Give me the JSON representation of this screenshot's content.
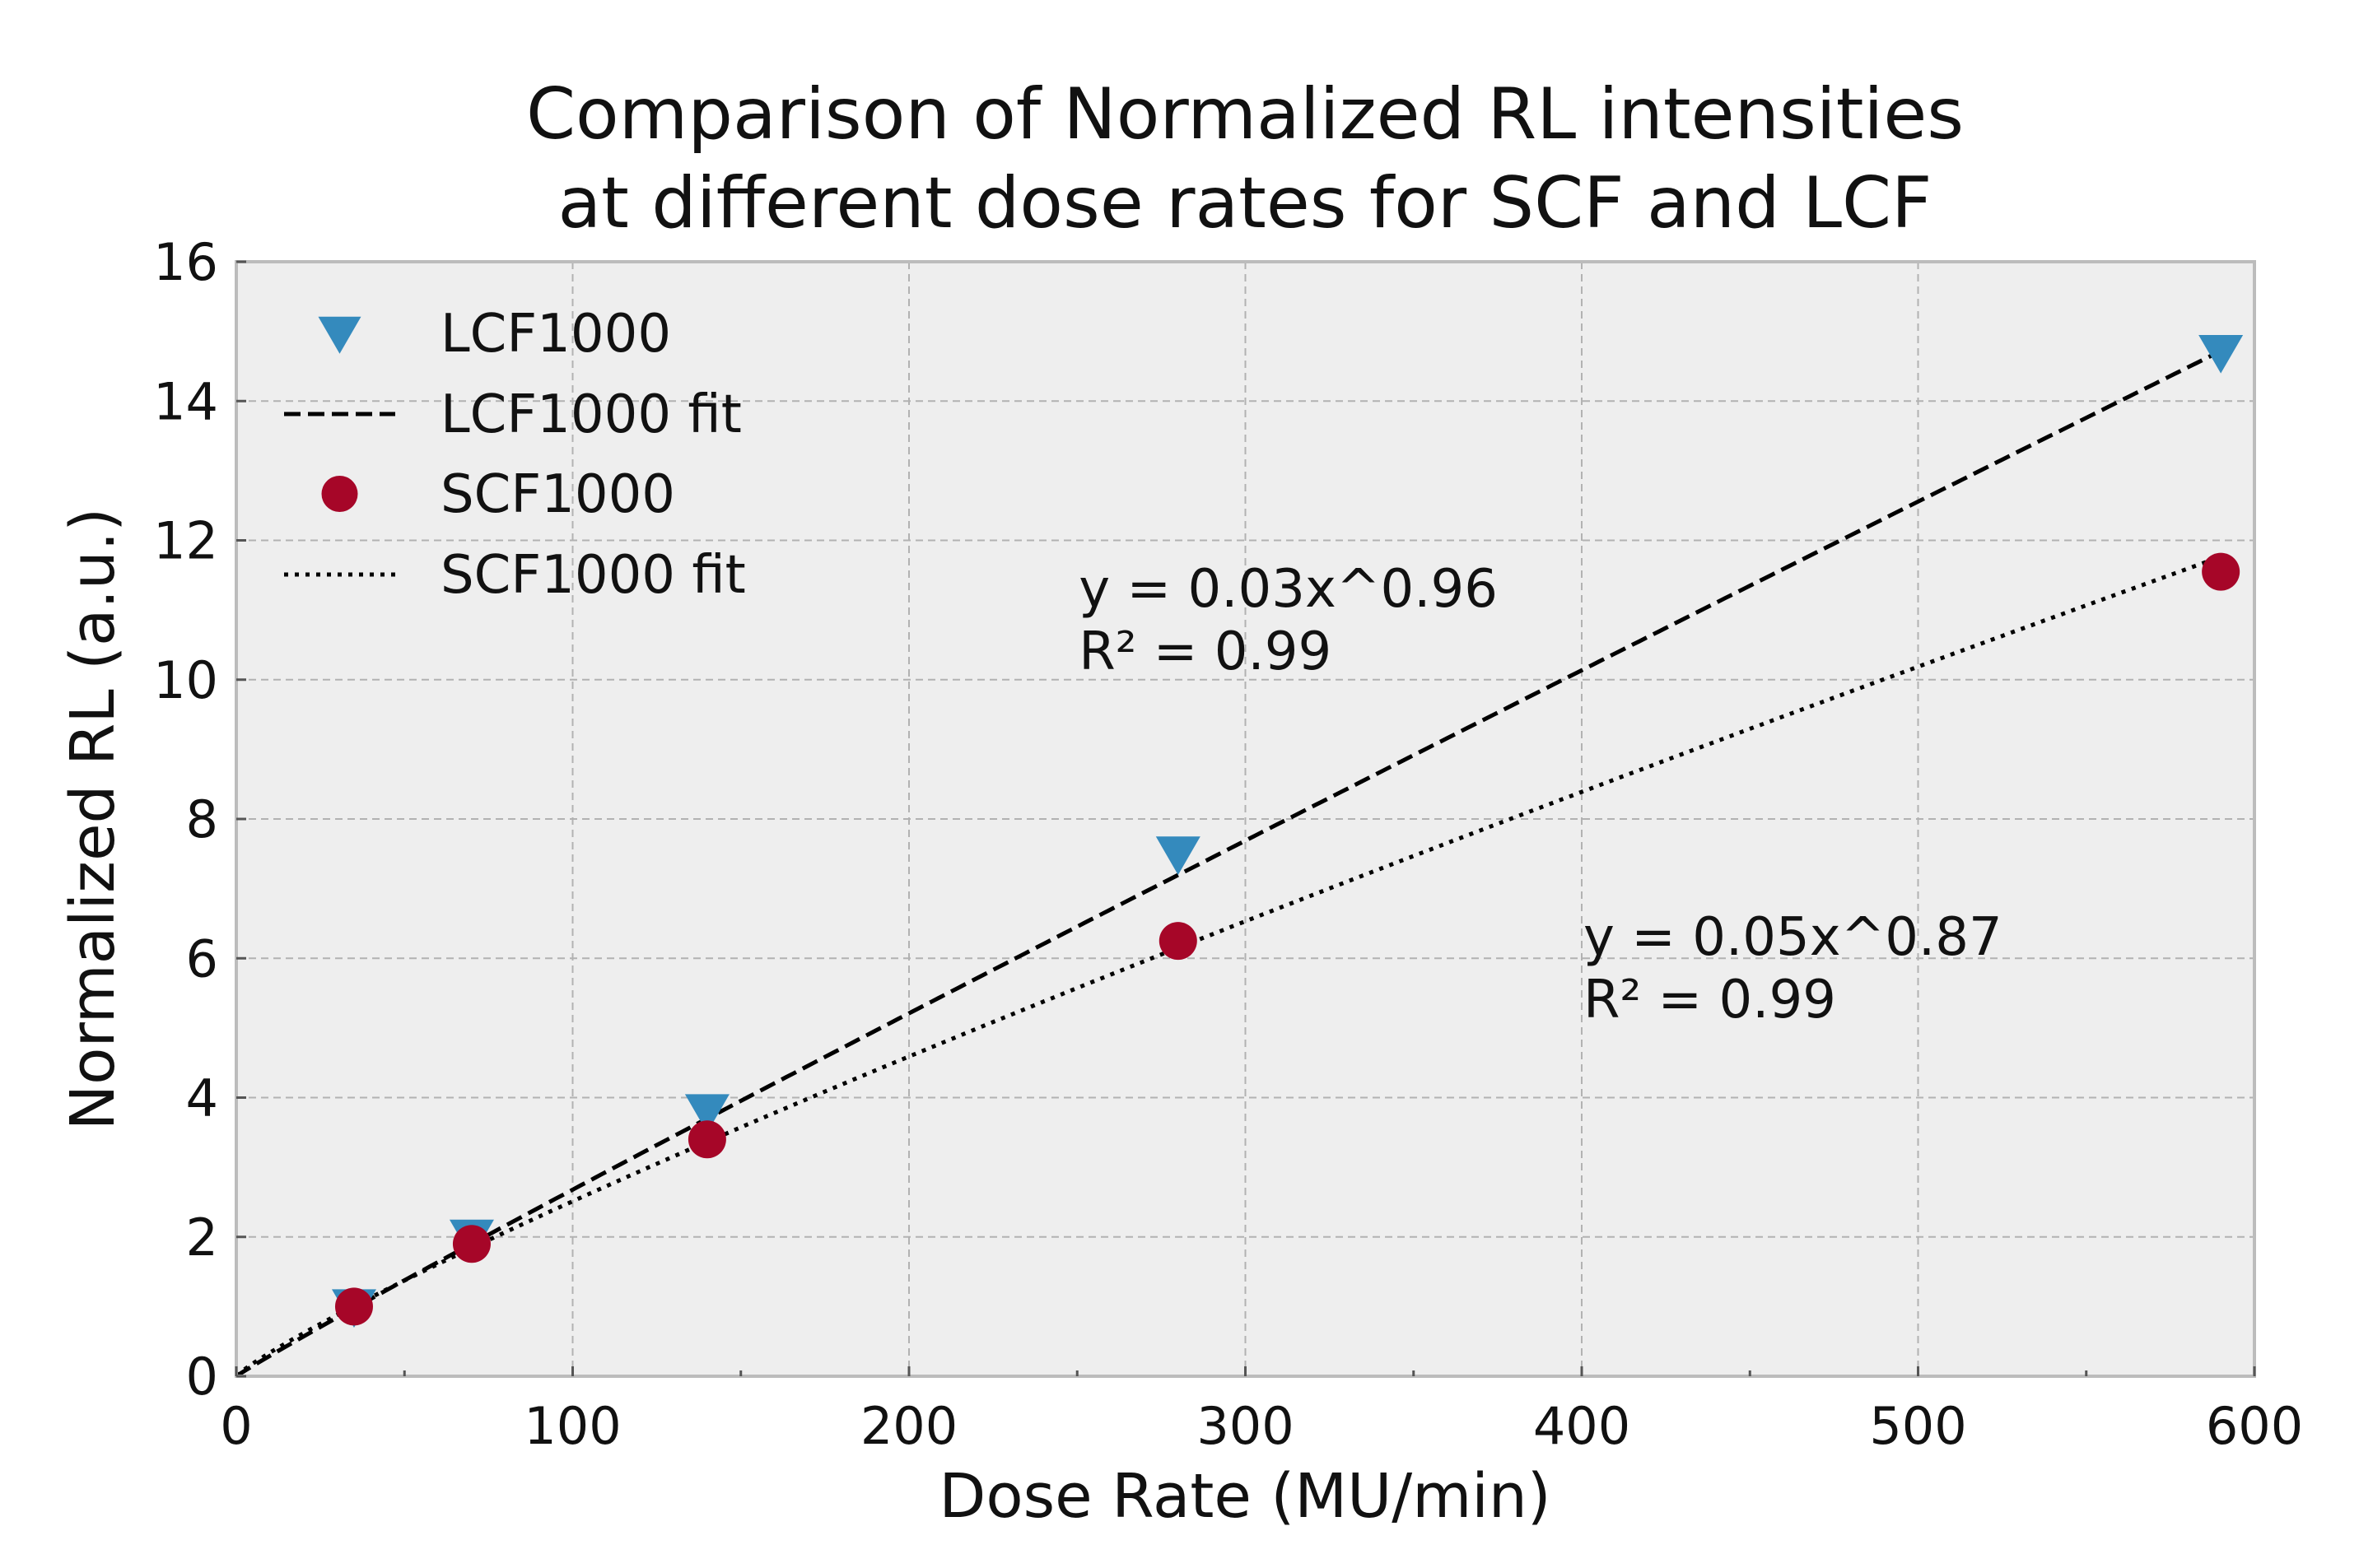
{
  "chart_data": {
    "type": "scatter",
    "title": [
      "Comparison of Normalized RL intensities",
      "at different dose rates for SCF and LCF"
    ],
    "xlabel": "Dose Rate (MU/min)",
    "ylabel": "Normalized RL (a.u.)",
    "xlim": [
      0,
      600
    ],
    "ylim": [
      0,
      16
    ],
    "xticks": [
      0,
      100,
      200,
      300,
      400,
      500,
      600
    ],
    "xtick_labels": [
      "0",
      "100",
      "200",
      "300",
      "400",
      "500",
      "600"
    ],
    "yticks": [
      0,
      2,
      4,
      6,
      8,
      10,
      12,
      14,
      16
    ],
    "ytick_labels": [
      "0",
      "2",
      "4",
      "6",
      "8",
      "10",
      "12",
      "14",
      "16"
    ],
    "x_minor_ticks": [
      50,
      150,
      250,
      350,
      450,
      550
    ],
    "grid": true,
    "legend_position": "top-left",
    "series": [
      {
        "name": "LCF1000",
        "kind": "points",
        "marker": "triangle-down",
        "color": "#348ABD",
        "x": [
          35,
          70,
          140,
          280,
          590
        ],
        "y": [
          1.0,
          2.0,
          3.8,
          7.5,
          14.7
        ]
      },
      {
        "name": "LCF1000 fit",
        "kind": "line",
        "dash": "dashed",
        "color": "#000000",
        "model": "power",
        "a": 0.0322,
        "b": 0.96
      },
      {
        "name": "SCF1000",
        "kind": "points",
        "marker": "circle",
        "color": "#A60628",
        "x": [
          35,
          70,
          140,
          280,
          590
        ],
        "y": [
          1.0,
          1.9,
          3.4,
          6.25,
          11.55
        ]
      },
      {
        "name": "SCF1000 fit",
        "kind": "line",
        "dash": "dotted",
        "color": "#000000",
        "model": "power",
        "a": 0.0457,
        "b": 0.87
      }
    ],
    "annotations": [
      {
        "lines": [
          "y = 0.03x^0.96",
          "R² = 0.99"
        ],
        "x": 250,
        "y": 11.05
      },
      {
        "lines": [
          "y = 0.05x^0.87",
          "R² = 0.99"
        ],
        "x": 400,
        "y": 6.05
      }
    ],
    "colors": {
      "plot_background": "#EEEEEE",
      "grid": "#B2B2B2",
      "frame": "#BCBCBC"
    }
  }
}
